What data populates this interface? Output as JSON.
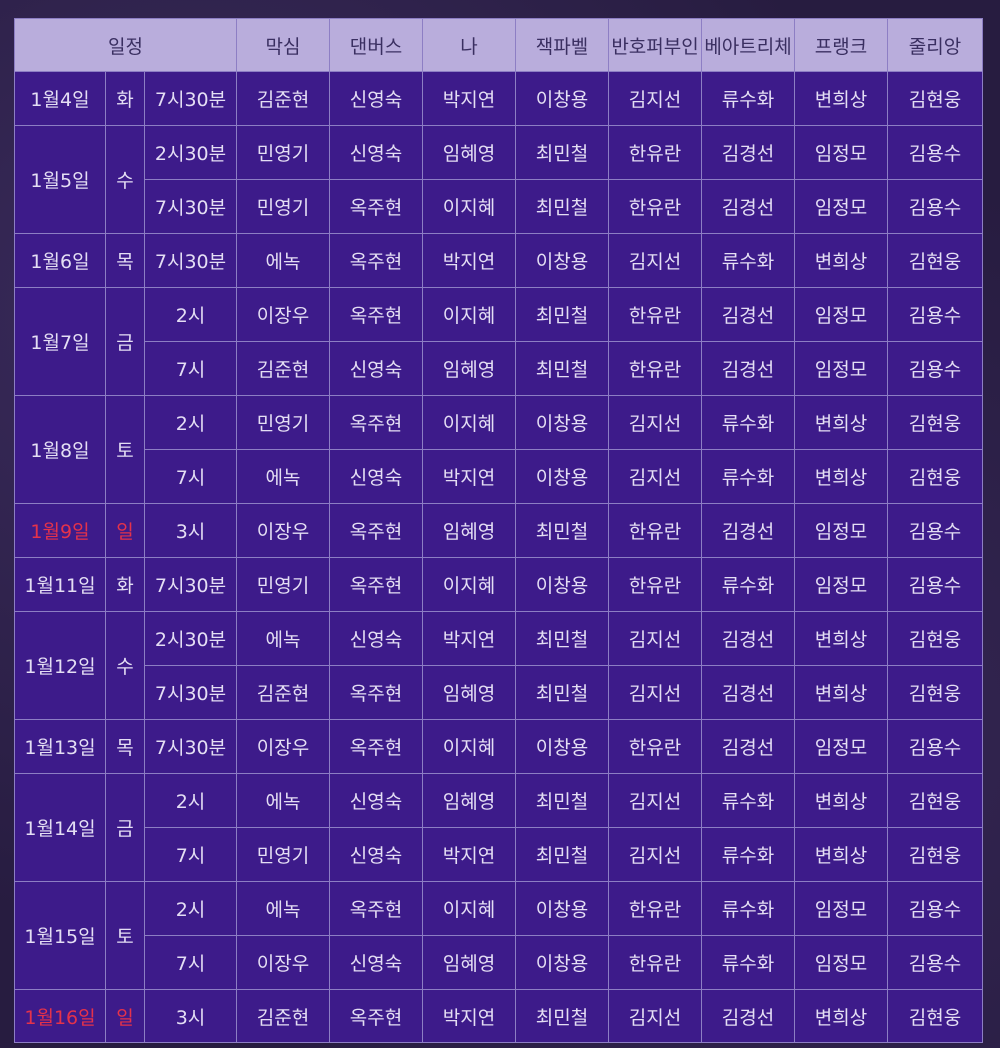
{
  "headers": [
    "일정",
    "막심",
    "댄버스",
    "나",
    "잭파벨",
    "반호퍼부인",
    "베아트리체",
    "프랭크",
    "줄리앙"
  ],
  "sunday_color": "#e5324a",
  "rows": [
    {
      "date": "1월4일",
      "day": "화",
      "time": "7시30분",
      "cast": [
        "김준현",
        "신영숙",
        "박지연",
        "이창용",
        "김지선",
        "류수화",
        "변희상",
        "김현웅"
      ]
    },
    {
      "date": "1월5일",
      "day": "수",
      "time": "2시30분",
      "cast": [
        "민영기",
        "신영숙",
        "임혜영",
        "최민철",
        "한유란",
        "김경선",
        "임정모",
        "김용수"
      ]
    },
    {
      "time": "7시30분",
      "cast": [
        "민영기",
        "옥주현",
        "이지혜",
        "최민철",
        "한유란",
        "김경선",
        "임정모",
        "김용수"
      ]
    },
    {
      "date": "1월6일",
      "day": "목",
      "time": "7시30분",
      "cast": [
        "에녹",
        "옥주현",
        "박지연",
        "이창용",
        "김지선",
        "류수화",
        "변희상",
        "김현웅"
      ]
    },
    {
      "date": "1월7일",
      "day": "금",
      "time": "2시",
      "cast": [
        "이장우",
        "옥주현",
        "이지혜",
        "최민철",
        "한유란",
        "김경선",
        "임정모",
        "김용수"
      ]
    },
    {
      "time": "7시",
      "cast": [
        "김준현",
        "신영숙",
        "임혜영",
        "최민철",
        "한유란",
        "김경선",
        "임정모",
        "김용수"
      ]
    },
    {
      "date": "1월8일",
      "day": "토",
      "time": "2시",
      "cast": [
        "민영기",
        "옥주현",
        "이지혜",
        "이창용",
        "김지선",
        "류수화",
        "변희상",
        "김현웅"
      ]
    },
    {
      "time": "7시",
      "cast": [
        "에녹",
        "신영숙",
        "박지연",
        "이창용",
        "김지선",
        "류수화",
        "변희상",
        "김현웅"
      ]
    },
    {
      "date": "1월9일",
      "day": "일",
      "time": "3시",
      "cast": [
        "이장우",
        "옥주현",
        "임혜영",
        "최민철",
        "한유란",
        "김경선",
        "임정모",
        "김용수"
      ]
    },
    {
      "date": "1월11일",
      "day": "화",
      "time": "7시30분",
      "cast": [
        "민영기",
        "옥주현",
        "이지혜",
        "이창용",
        "한유란",
        "류수화",
        "임정모",
        "김용수"
      ]
    },
    {
      "date": "1월12일",
      "day": "수",
      "time": "2시30분",
      "cast": [
        "에녹",
        "신영숙",
        "박지연",
        "최민철",
        "김지선",
        "김경선",
        "변희상",
        "김현웅"
      ]
    },
    {
      "time": "7시30분",
      "cast": [
        "김준현",
        "옥주현",
        "임혜영",
        "최민철",
        "김지선",
        "김경선",
        "변희상",
        "김현웅"
      ]
    },
    {
      "date": "1월13일",
      "day": "목",
      "time": "7시30분",
      "cast": [
        "이장우",
        "옥주현",
        "이지혜",
        "이창용",
        "한유란",
        "김경선",
        "임정모",
        "김용수"
      ]
    },
    {
      "date": "1월14일",
      "day": "금",
      "time": "2시",
      "cast": [
        "에녹",
        "신영숙",
        "임혜영",
        "최민철",
        "김지선",
        "류수화",
        "변희상",
        "김현웅"
      ]
    },
    {
      "time": "7시",
      "cast": [
        "민영기",
        "신영숙",
        "박지연",
        "최민철",
        "김지선",
        "류수화",
        "변희상",
        "김현웅"
      ]
    },
    {
      "date": "1월15일",
      "day": "토",
      "time": "2시",
      "cast": [
        "에녹",
        "옥주현",
        "이지혜",
        "이창용",
        "한유란",
        "류수화",
        "임정모",
        "김용수"
      ]
    },
    {
      "time": "7시",
      "cast": [
        "이장우",
        "신영숙",
        "임혜영",
        "이창용",
        "한유란",
        "류수화",
        "임정모",
        "김용수"
      ]
    },
    {
      "date": "1월16일",
      "day": "일",
      "time": "3시",
      "cast": [
        "김준현",
        "옥주현",
        "박지연",
        "최민철",
        "김지선",
        "김경선",
        "변희상",
        "김현웅"
      ]
    }
  ]
}
